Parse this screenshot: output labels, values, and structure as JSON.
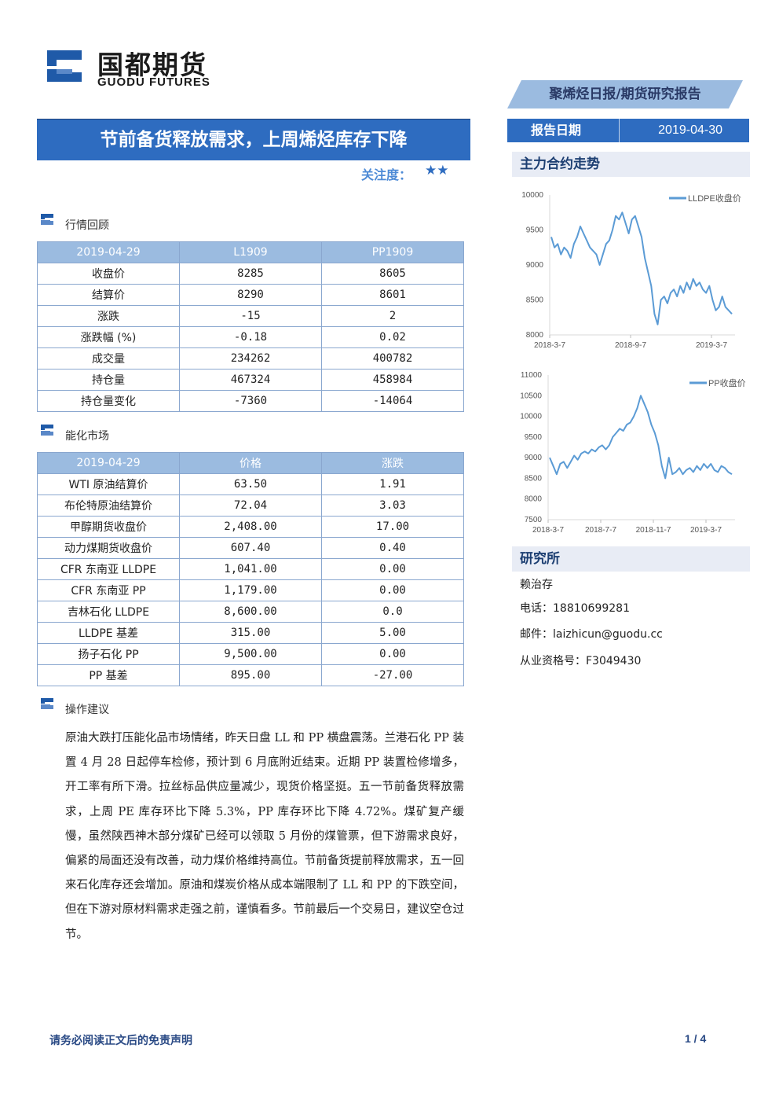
{
  "header": {
    "logo_cn": "国都期货",
    "logo_en": "GUODU FUTURES",
    "report_type": "聚烯烃日报/期货研究报告",
    "report_date_label": "报告日期",
    "report_date_value": "2019-04-30"
  },
  "title": "节前备货释放需求，上周烯烃库存下降",
  "attention": {
    "label": "关注度：",
    "stars": "★★"
  },
  "section_market": {
    "title": "行情回顾",
    "header": [
      "2019-04-29",
      "L1909",
      "PP1909"
    ],
    "rows": [
      [
        "收盘价",
        "8285",
        "8605"
      ],
      [
        "结算价",
        "8290",
        "8601"
      ],
      [
        "涨跌",
        "-15",
        "2"
      ],
      [
        "涨跌幅 (%)",
        "-0.18",
        "0.02"
      ],
      [
        "成交量",
        "234262",
        "400782"
      ],
      [
        "持仓量",
        "467324",
        "458984"
      ],
      [
        "持仓量变化",
        "-7360",
        "-14064"
      ]
    ]
  },
  "section_energy": {
    "title": "能化市场",
    "header": [
      "2019-04-29",
      "价格",
      "涨跌"
    ],
    "rows": [
      [
        "WTI 原油结算价",
        "63.50",
        "1.91"
      ],
      [
        "布伦特原油结算价",
        "72.04",
        "3.03"
      ],
      [
        "甲醇期货收盘价",
        "2,408.00",
        "17.00"
      ],
      [
        "动力煤期货收盘价",
        "607.40",
        "0.40"
      ],
      [
        "CFR 东南亚 LLDPE",
        "1,041.00",
        "0.00"
      ],
      [
        "CFR 东南亚 PP",
        "1,179.00",
        "0.00"
      ],
      [
        "吉林石化 LLDPE",
        "8,600.00",
        "0.0"
      ],
      [
        "LLDPE 基差",
        "315.00",
        "5.00"
      ],
      [
        "扬子石化 PP",
        "9,500.00",
        "0.00"
      ],
      [
        "PP 基差",
        "895.00",
        "-27.00"
      ]
    ]
  },
  "section_advice": {
    "title": "操作建议",
    "text": "原油大跌打压能化品市场情绪，昨天日盘 LL 和 PP 横盘震荡。兰港石化 PP 装置 4 月 28 日起停车检修，预计到 6 月底附近结束。近期 PP 装置检修增多，开工率有所下滑。拉丝标品供应量减少，现货价格坚挺。五一节前备货释放需求，上周 PE 库存环比下降 5.3%，PP 库存环比下降 4.72%。煤矿复产缓慢，虽然陕西神木部分煤矿已经可以领取 5 月份的煤管票，但下游需求良好，偏紧的局面还没有改善，动力煤价格维持高位。节前备货提前释放需求，五一回来石化库存还会增加。原油和煤炭价格从成本端限制了 LL 和 PP 的下跌空间，但在下游对原材料需求走强之前，谨慎看多。节前最后一个交易日，建议空仓过节。"
  },
  "trend_section_title": "主力合约走势",
  "chart_data": [
    {
      "type": "line",
      "series": [
        {
          "name": "LLDPE收盘价",
          "values": [
            9400,
            9250,
            9300,
            9150,
            9250,
            9200,
            9100,
            9300,
            9400,
            9550,
            9450,
            9350,
            9250,
            9200,
            9150,
            9000,
            9150,
            9300,
            9350,
            9500,
            9700,
            9650,
            9750,
            9600,
            9450,
            9650,
            9700,
            9550,
            9400,
            9100,
            8900,
            8700,
            8300,
            8150,
            8500,
            8550,
            8450,
            8600,
            8650,
            8550,
            8700,
            8600,
            8750,
            8650,
            8800,
            8700,
            8750,
            8650,
            8600,
            8700,
            8500,
            8350,
            8400,
            8550,
            8400,
            8350,
            8300
          ]
        }
      ],
      "x_ticks": [
        "2018-3-7",
        "2018-9-7",
        "2019-3-7"
      ],
      "y_ticks": [
        "10000",
        "9500",
        "9000",
        "8500",
        "8000"
      ],
      "ylim": [
        8000,
        10000
      ],
      "legend": "top-right",
      "color": "#5b9bd5"
    },
    {
      "type": "line",
      "series": [
        {
          "name": "PP收盘价",
          "values": [
            9000,
            8800,
            8600,
            8850,
            8900,
            8750,
            8900,
            9050,
            8950,
            9100,
            9150,
            9100,
            9200,
            9150,
            9250,
            9300,
            9200,
            9300,
            9500,
            9600,
            9700,
            9650,
            9800,
            9850,
            10000,
            10200,
            10500,
            10300,
            10100,
            9800,
            9600,
            9300,
            8800,
            8500,
            9000,
            8600,
            8650,
            8750,
            8600,
            8700,
            8750,
            8650,
            8800,
            8700,
            8850,
            8750,
            8850,
            8700,
            8650,
            8800,
            8750,
            8650,
            8600
          ]
        }
      ],
      "x_ticks": [
        "2018-3-7",
        "2018-7-7",
        "2018-11-7",
        "2019-3-7"
      ],
      "y_ticks": [
        "11000",
        "10500",
        "10000",
        "9500",
        "9000",
        "8500",
        "8000",
        "7500"
      ],
      "ylim": [
        7500,
        11000
      ],
      "legend": "top-right",
      "color": "#5b9bd5"
    }
  ],
  "research": {
    "title": "研究所",
    "name": "赖治存",
    "phone": "电话：18810699281",
    "email": "邮件：laizhicun@guodu.cc",
    "license": "从业资格号：F3049430"
  },
  "footer": {
    "note": "请务必阅读正文后的免责声明",
    "page": "1 / 4"
  }
}
